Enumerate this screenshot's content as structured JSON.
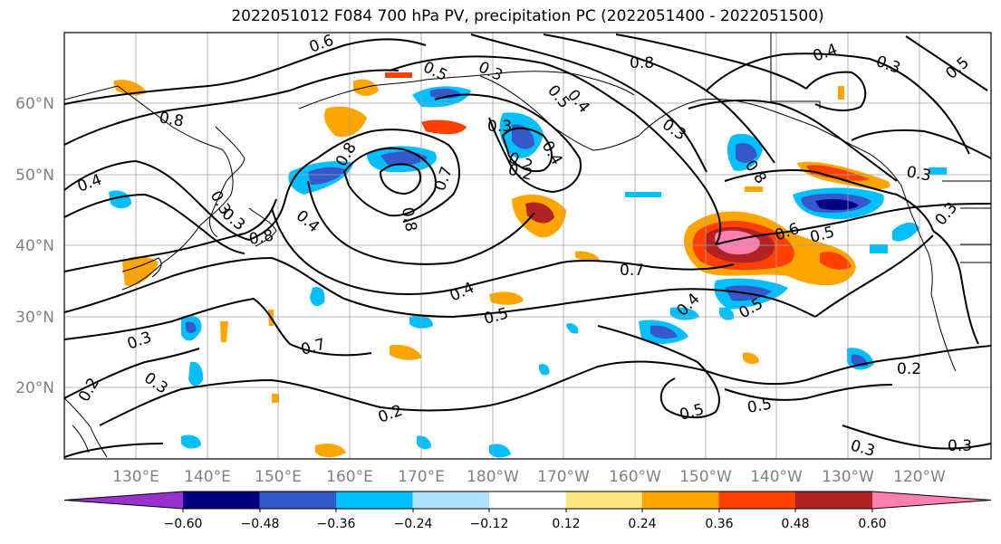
{
  "title": "2022051012 F084 700 hPa PV, precipitation PC (2022051400 - 2022051500)",
  "map": {
    "lon_ticks": [
      "130°E",
      "140°E",
      "150°E",
      "160°E",
      "170°E",
      "180°W",
      "170°W",
      "160°W",
      "150°W",
      "140°W",
      "130°W",
      "120°W"
    ],
    "lat_ticks": [
      "60°N",
      "50°N",
      "40°N",
      "30°N",
      "20°N"
    ],
    "grid": true,
    "contour_color": "#000000",
    "coast_color": "#000000"
  },
  "contour_labels": [
    "0.6",
    "0.5",
    "0.3",
    "0.8",
    "0.4",
    "0.3",
    "0.5",
    "0.8",
    "0.4",
    "0.3",
    "0.2",
    "0.3",
    "0.8",
    "0.4",
    "0.8",
    "0.3",
    "0.4",
    "0.7",
    "0.2",
    "0.8",
    "0.5",
    "0.4",
    "0.8",
    "0.7",
    "0.6",
    "0.5",
    "0.4",
    "0.3",
    "0.3",
    "0.5",
    "0.5",
    "0.5",
    "0.5",
    "0.4",
    "0.3",
    "0.2",
    "0.2",
    "0.3",
    "0.3",
    "0.2",
    "0.3",
    "0.7",
    "0.3"
  ],
  "colorbar": {
    "ticks": [
      "−0.60",
      "−0.48",
      "−0.36",
      "−0.24",
      "−0.12",
      "0.12",
      "0.24",
      "0.36",
      "0.48",
      "0.60"
    ],
    "colors": [
      "#9932cc",
      "#000080",
      "#3558cc",
      "#00bfff",
      "#b0e0ff",
      "#ffffff",
      "#ffe680",
      "#ffa500",
      "#ff4000",
      "#b22222",
      "#ff80b0"
    ]
  }
}
